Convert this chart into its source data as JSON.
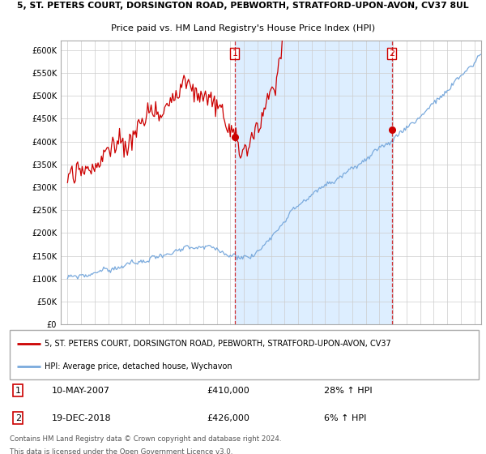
{
  "title_line1": "5, ST. PETERS COURT, DORSINGTON ROAD, PEBWORTH, STRATFORD-UPON-AVON, CV37 8UL",
  "title_line2": "Price paid vs. HM Land Registry's House Price Index (HPI)",
  "ylim": [
    0,
    620000
  ],
  "yticks": [
    0,
    50000,
    100000,
    150000,
    200000,
    250000,
    300000,
    350000,
    400000,
    450000,
    500000,
    550000,
    600000
  ],
  "ytick_labels": [
    "£0",
    "£50K",
    "£100K",
    "£150K",
    "£200K",
    "£250K",
    "£300K",
    "£350K",
    "£400K",
    "£450K",
    "£500K",
    "£550K",
    "£600K"
  ],
  "sale1_date": "10-MAY-2007",
  "sale1_price": 410000,
  "sale1_hpi_pct": "28%",
  "sale2_date": "19-DEC-2018",
  "sale2_price": 426000,
  "sale2_hpi_pct": "6%",
  "red_line_color": "#cc0000",
  "blue_line_color": "#7aaadd",
  "shade_color": "#ddeeff",
  "legend_red_label": "5, ST. PETERS COURT, DORSINGTON ROAD, PEBWORTH, STRATFORD-UPON-AVON, CV37",
  "legend_blue_label": "HPI: Average price, detached house, Wychavon",
  "footer_line1": "Contains HM Land Registry data © Crown copyright and database right 2024.",
  "footer_line2": "This data is licensed under the Open Government Licence v3.0.",
  "x_start_year": 1995,
  "x_end_year": 2025
}
